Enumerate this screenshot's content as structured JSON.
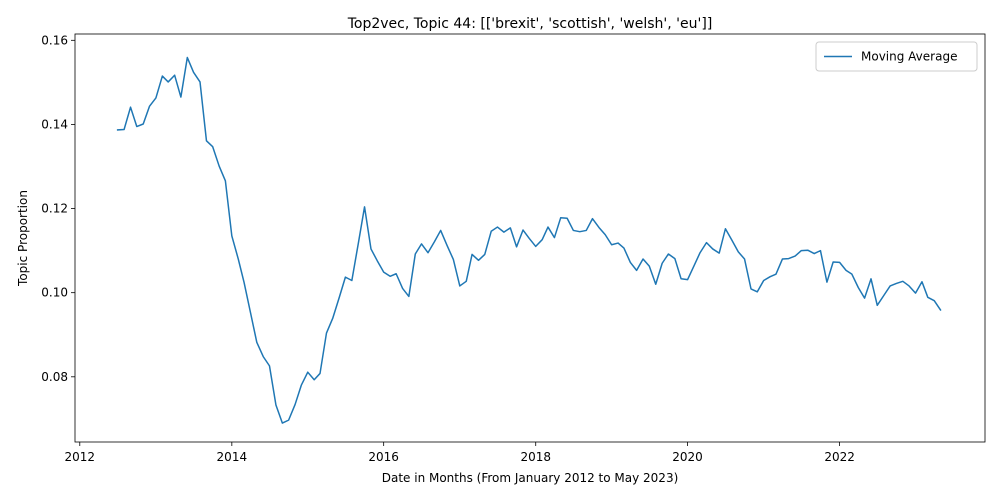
{
  "chart_data": {
    "type": "line",
    "title": "Top2vec, Topic 44: [['brexit', 'scottish', 'welsh', 'eu']]",
    "xlabel": "Date in Months (From January 2012 to May 2023)",
    "ylabel": "Topic Proportion",
    "xlim": [
      "2011-12-09",
      "2023-12-01"
    ],
    "ylim": [
      0.0645,
      0.1615
    ],
    "x_ticks": [
      {
        "value": "2012-01-01",
        "label": "2012"
      },
      {
        "value": "2014-01-01",
        "label": "2014"
      },
      {
        "value": "2016-01-01",
        "label": "2016"
      },
      {
        "value": "2018-01-01",
        "label": "2018"
      },
      {
        "value": "2020-01-01",
        "label": "2020"
      },
      {
        "value": "2022-01-01",
        "label": "2022"
      }
    ],
    "y_ticks": [
      {
        "value": 0.08,
        "label": "0.08"
      },
      {
        "value": 0.1,
        "label": "0.10"
      },
      {
        "value": 0.12,
        "label": "0.12"
      },
      {
        "value": 0.14,
        "label": "0.14"
      },
      {
        "value": 0.16,
        "label": "0.16"
      }
    ],
    "grid": false,
    "legend_position": "top-right",
    "series": [
      {
        "name": "Moving Average",
        "color": "#1f77b4",
        "x": [
          "2012-07-01",
          "2012-08-01",
          "2012-09-01",
          "2012-10-01",
          "2012-11-01",
          "2012-12-01",
          "2013-01-01",
          "2013-02-01",
          "2013-03-01",
          "2013-04-01",
          "2013-05-01",
          "2013-06-01",
          "2013-07-01",
          "2013-08-01",
          "2013-09-01",
          "2013-10-01",
          "2013-11-01",
          "2013-12-01",
          "2014-01-01",
          "2014-02-01",
          "2014-03-01",
          "2014-04-01",
          "2014-05-01",
          "2014-06-01",
          "2014-07-01",
          "2014-08-01",
          "2014-09-01",
          "2014-10-01",
          "2014-11-01",
          "2014-12-01",
          "2015-01-01",
          "2015-02-01",
          "2015-03-01",
          "2015-04-01",
          "2015-05-01",
          "2015-06-01",
          "2015-07-01",
          "2015-08-01",
          "2015-09-01",
          "2015-10-01",
          "2015-11-01",
          "2015-12-01",
          "2016-01-01",
          "2016-02-01",
          "2016-03-01",
          "2016-04-01",
          "2016-05-01",
          "2016-06-01",
          "2016-07-01",
          "2016-08-01",
          "2016-09-01",
          "2016-10-01",
          "2016-11-01",
          "2016-12-01",
          "2017-01-01",
          "2017-02-01",
          "2017-03-01",
          "2017-04-01",
          "2017-05-01",
          "2017-06-01",
          "2017-07-01",
          "2017-08-01",
          "2017-09-01",
          "2017-10-01",
          "2017-11-01",
          "2017-12-01",
          "2018-01-01",
          "2018-02-01",
          "2018-03-01",
          "2018-04-01",
          "2018-05-01",
          "2018-06-01",
          "2018-07-01",
          "2018-08-01",
          "2018-09-01",
          "2018-10-01",
          "2018-11-01",
          "2018-12-01",
          "2019-01-01",
          "2019-02-01",
          "2019-03-01",
          "2019-04-01",
          "2019-05-01",
          "2019-06-01",
          "2019-07-01",
          "2019-08-01",
          "2019-09-01",
          "2019-10-01",
          "2019-11-01",
          "2019-12-01",
          "2020-01-01",
          "2020-02-01",
          "2020-03-01",
          "2020-04-01",
          "2020-05-01",
          "2020-06-01",
          "2020-07-01",
          "2020-08-01",
          "2020-09-01",
          "2020-10-01",
          "2020-11-01",
          "2020-12-01",
          "2021-01-01",
          "2021-02-01",
          "2021-03-01",
          "2021-04-01",
          "2021-05-01",
          "2021-06-01",
          "2021-07-01",
          "2021-08-01",
          "2021-09-01",
          "2021-10-01",
          "2021-11-01",
          "2021-12-01",
          "2022-01-01",
          "2022-02-01",
          "2022-03-01",
          "2022-04-01",
          "2022-05-01",
          "2022-06-01",
          "2022-07-01",
          "2022-08-01",
          "2022-09-01",
          "2022-10-01",
          "2022-11-01",
          "2022-12-01",
          "2023-01-01",
          "2023-02-01",
          "2023-03-01",
          "2023-04-01",
          "2023-05-01"
        ],
        "y": [
          0.1387,
          0.1388,
          0.1441,
          0.1395,
          0.1401,
          0.1443,
          0.1463,
          0.1515,
          0.1501,
          0.1517,
          0.1465,
          0.1559,
          0.1524,
          0.1501,
          0.1361,
          0.1347,
          0.1301,
          0.1266,
          0.1135,
          0.108,
          0.1024,
          0.0952,
          0.0882,
          0.0848,
          0.0826,
          0.0733,
          0.069,
          0.0697,
          0.0734,
          0.078,
          0.0811,
          0.0793,
          0.0808,
          0.0904,
          0.0939,
          0.0988,
          0.1037,
          0.1029,
          0.1117,
          0.1204,
          0.1104,
          0.1076,
          0.1049,
          0.1039,
          0.1045,
          0.101,
          0.0991,
          0.1092,
          0.1116,
          0.1095,
          0.1121,
          0.1148,
          0.1112,
          0.1079,
          0.1016,
          0.1027,
          0.1091,
          0.1077,
          0.1091,
          0.1146,
          0.1156,
          0.1144,
          0.1154,
          0.1109,
          0.1149,
          0.1129,
          0.111,
          0.1126,
          0.1156,
          0.1131,
          0.1178,
          0.1177,
          0.1148,
          0.1145,
          0.1148,
          0.1176,
          0.1155,
          0.1138,
          0.1114,
          0.1118,
          0.1106,
          0.1072,
          0.1053,
          0.108,
          0.1063,
          0.102,
          0.107,
          0.1092,
          0.1081,
          0.1033,
          0.1031,
          0.1064,
          0.1095,
          0.1119,
          0.1104,
          0.1094,
          0.1152,
          0.1125,
          0.1097,
          0.108,
          0.1009,
          0.1002,
          0.1029,
          0.1038,
          0.1044,
          0.108,
          0.1081,
          0.1087,
          0.11,
          0.1101,
          0.1093,
          0.11,
          0.1025,
          0.1073,
          0.1072,
          0.1053,
          0.1044,
          0.1012,
          0.0987,
          0.1033,
          0.097,
          0.0993,
          0.1016,
          0.1022,
          0.1027,
          0.1016,
          0.0999,
          0.1026,
          0.0989,
          0.0981,
          0.0959
        ]
      }
    ]
  }
}
